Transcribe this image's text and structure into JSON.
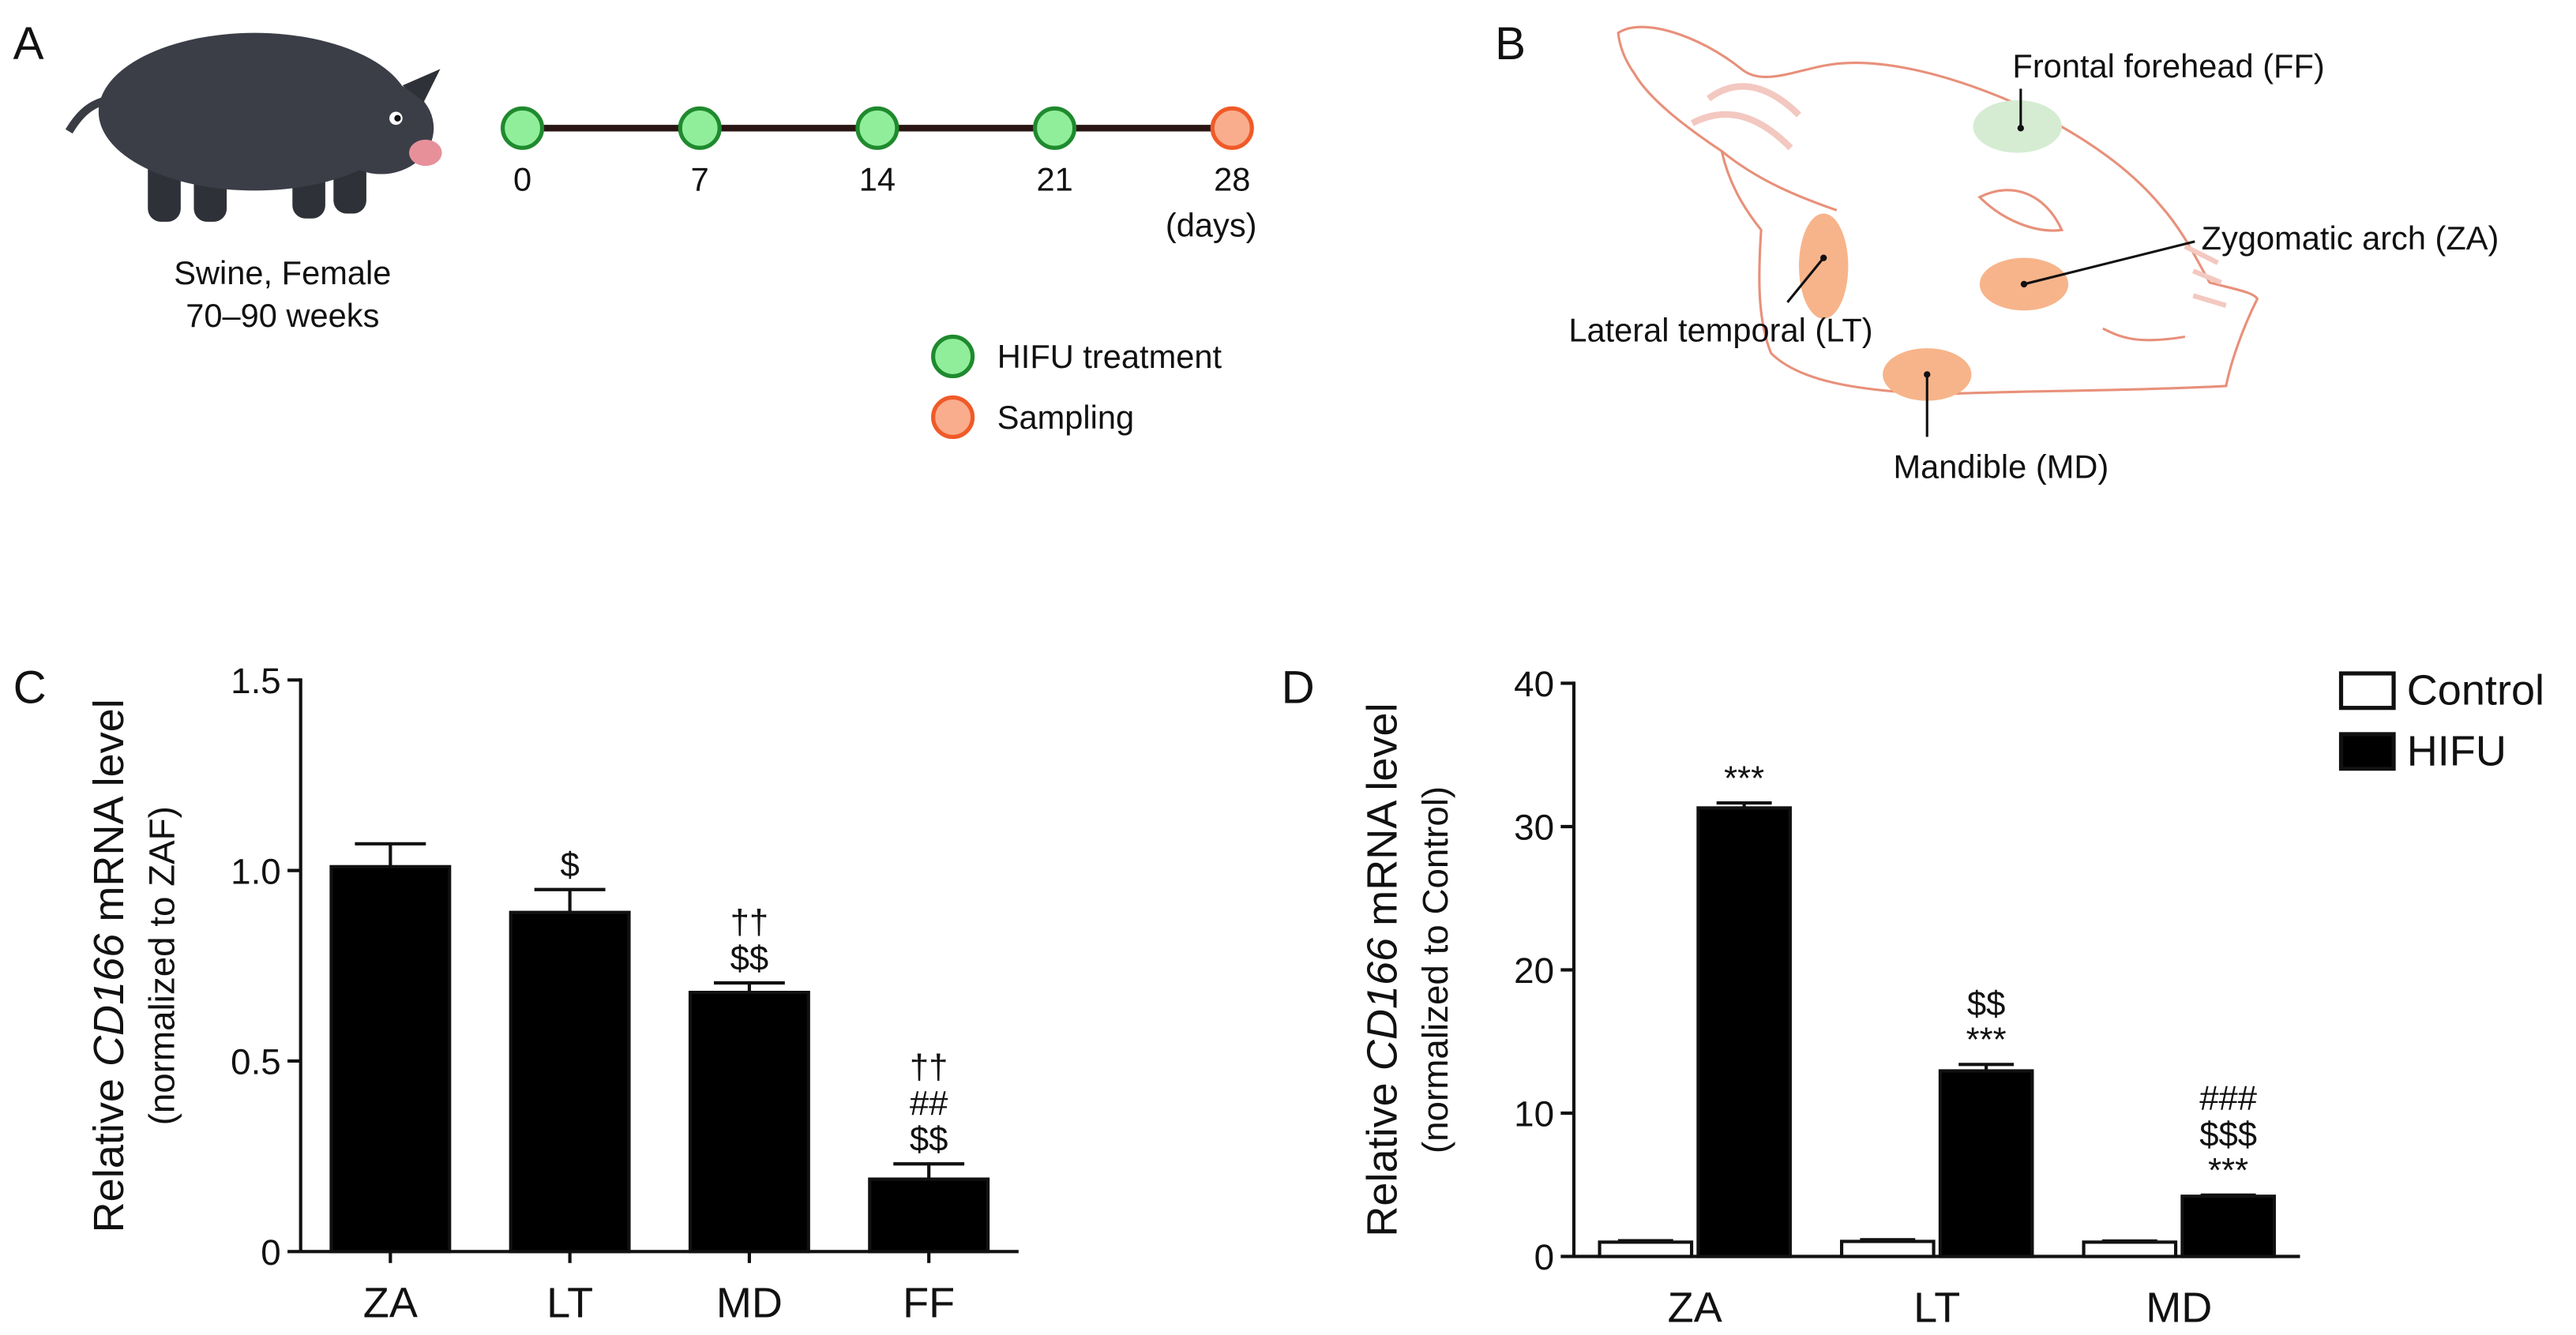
{
  "panel_a": {
    "label": "A",
    "subject": [
      "Swine, Female",
      "70–90 weeks"
    ],
    "days": [
      0,
      7,
      14,
      21,
      28
    ],
    "unit": "(days)",
    "legend": [
      "HIFU treatment",
      "Sampling"
    ]
  },
  "panel_b": {
    "label": "B",
    "sites": [
      "Frontal forehead (FF)",
      "Zygomatic arch (ZA)",
      "Lateral temporal (LT)",
      "Mandible (MD)"
    ]
  },
  "chart_data": [
    {
      "type": "bar",
      "panel": "C",
      "y_label": [
        "Relative ",
        "CD166",
        " mRNA level"
      ],
      "y_sublabel": "(normalized to ZAF)",
      "categories": [
        "ZA",
        "LT",
        "MD",
        "FF"
      ],
      "values": [
        1.01,
        0.89,
        0.68,
        0.19
      ],
      "errors": [
        0.06,
        0.06,
        0.025,
        0.04
      ],
      "annotations": [
        [],
        [
          "$"
        ],
        [
          "††",
          "$$"
        ],
        [
          "††",
          "##",
          "$$"
        ]
      ],
      "color": "#000000",
      "ylim": [
        0,
        1.5
      ],
      "yticks": [
        0,
        0.5,
        {
          "value": 1,
          "label": "1.0"
        },
        1.5
      ]
    },
    {
      "type": "grouped_bar",
      "panel": "D",
      "y_label": [
        "Relative ",
        "CD166",
        " mRNA level"
      ],
      "y_sublabel": "(normalized to Control)",
      "categories": [
        "ZA",
        "LT",
        "MD"
      ],
      "series": [
        {
          "name": "Control",
          "color": "#ffffff",
          "values": [
            1.0,
            1.05,
            1.0
          ],
          "errors": [
            0.1,
            0.12,
            0.08
          ]
        },
        {
          "name": "HIFU",
          "color": "#000000",
          "values": [
            31.3,
            12.95,
            4.2
          ],
          "errors": [
            0.35,
            0.45,
            0.08
          ],
          "annotations": [
            [
              "***"
            ],
            [
              "$$",
              "***"
            ],
            [
              "###",
              "$$$",
              "***"
            ]
          ]
        }
      ],
      "ylim": [
        0,
        40
      ],
      "yticks": [
        0,
        10,
        20,
        30,
        40
      ],
      "legend": "top-right"
    }
  ]
}
